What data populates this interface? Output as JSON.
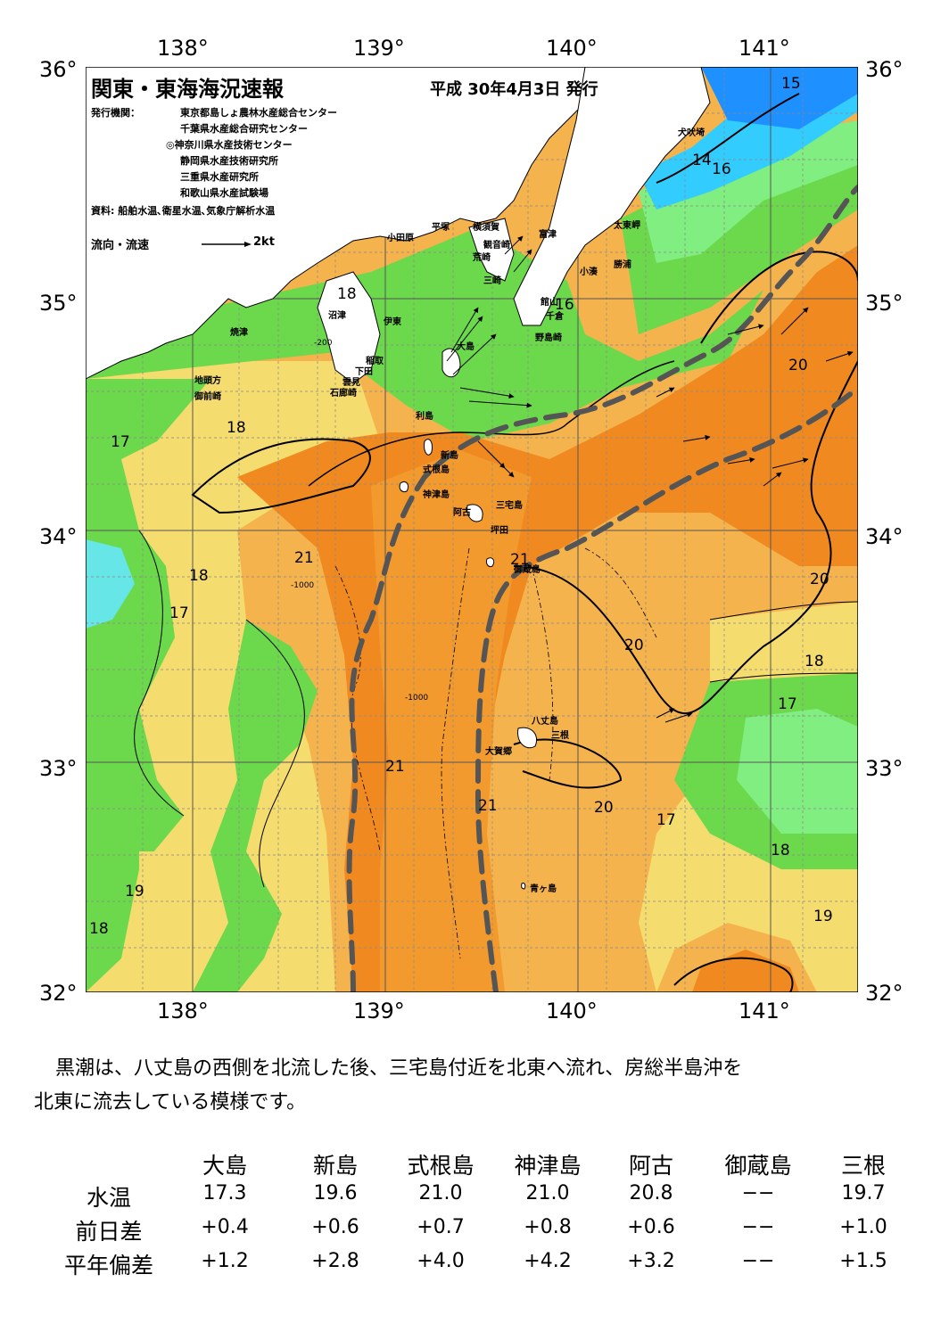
{
  "axes": {
    "lon_ticks": [
      "138°",
      "139°",
      "140°",
      "141°"
    ],
    "lat_ticks": [
      "36°",
      "35°",
      "34°",
      "33°",
      "32°"
    ]
  },
  "header": {
    "title": "関東・東海海況速報",
    "date": "平成 30年4月3日 発行",
    "issuer_label": "発行機関：",
    "issuers": [
      "東京都島しょ農林水産総合センター",
      "千葉県水産総合研究センター",
      "◎神奈川県水産技術センター",
      "静岡県水産技術研究所",
      "三重県水産研究所",
      "和歌山県水産試験場"
    ],
    "source": "資料: 船舶水温､衛星水温､気象庁解析水温",
    "legend_label": "流向・流速",
    "legend_unit": "2kt"
  },
  "colors": {
    "c13": "#1e90ff",
    "c14": "#33ccff",
    "c15": "#66e6e6",
    "c16": "#80ee80",
    "c17": "#6cd84c",
    "c18": "#b4e15a",
    "c19": "#f5dc6e",
    "c20": "#f5b34e",
    "c21": "#f29a2e",
    "c22": "#f08a20",
    "land": "#ffffff",
    "kuroshio": "#555555"
  },
  "place_labels": [
    "小田原",
    "平塚",
    "横須賀",
    "観音崎",
    "富津",
    "太東岬",
    "荒崎",
    "勝浦",
    "小湊",
    "三崎",
    "館山",
    "千倉",
    "野島崎",
    "沼津",
    "焼津",
    "伊東",
    "稲取",
    "下田",
    "雲見",
    "石廊崎",
    "地頭方",
    "御前崎",
    "大島",
    "利島",
    "新島",
    "式根島",
    "神津島",
    "三宅島",
    "阿古",
    "坪田",
    "御蔵島",
    "八丈島",
    "三根",
    "大賀郷",
    "青ヶ島",
    "犬吠埼"
  ],
  "isotherm_labels": [
    "15",
    "14",
    "16",
    "16",
    "18",
    "20",
    "17",
    "18",
    "21",
    "18",
    "17",
    "21",
    "20",
    "20",
    "18",
    "17",
    "21",
    "21",
    "20",
    "17",
    "18",
    "19",
    "19",
    "18"
  ],
  "depth_labels": [
    "-200",
    "-1000"
  ],
  "summary": [
    "黒潮は、八丈島の西側を北流した後、三宅島付近を北東へ流れ、房総半島沖を",
    "北東に流去している模様です。"
  ],
  "table": {
    "columns": [
      "大島",
      "新島",
      "式根島",
      "神津島",
      "阿古",
      "御蔵島",
      "三根"
    ],
    "rows": [
      {
        "label": "水温",
        "values": [
          "17.3",
          "19.6",
          "21.0",
          "21.0",
          "20.8",
          "−−",
          "19.7"
        ]
      },
      {
        "label": "前日差",
        "values": [
          "+0.4",
          "+0.6",
          "+0.7",
          "+0.8",
          "+0.6",
          "−−",
          "+1.0"
        ]
      },
      {
        "label": "平年偏差",
        "values": [
          "+1.2",
          "+2.8",
          "+4.0",
          "+4.2",
          "+3.2",
          "−−",
          "+1.5"
        ]
      }
    ]
  }
}
